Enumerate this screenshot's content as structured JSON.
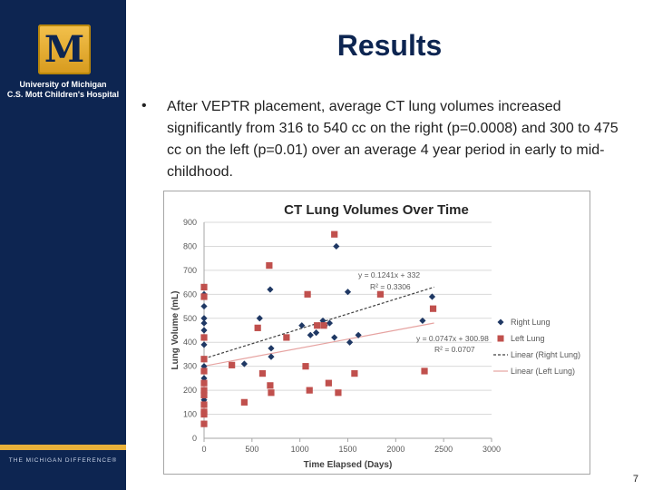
{
  "sidebar": {
    "logo_letter": "M",
    "institution_line1": "University of Michigan",
    "institution_line2": "C.S. Mott Children's Hospital",
    "footer": "THE MICHIGAN DIFFERENCE®"
  },
  "slide": {
    "title": "Results",
    "bullet_symbol": "•",
    "bullet_text": "After VEPTR placement, average CT lung volumes increased significantly from 316 to 540 cc on the right (p=0.0008) and 300 to 475 cc on the left (p=0.01) over an average 4 year period in early to mid-childhood.",
    "page_number": "7"
  },
  "colors": {
    "sidebar_bg": "#0d2551",
    "accent_gold": "#e8b13a",
    "right_lung": "#1f3864",
    "left_lung": "#c0504d"
  },
  "chart_data": {
    "type": "scatter",
    "title": "CT Lung Volumes Over Time",
    "xlabel": "Time Elapsed (Days)",
    "ylabel": "Lung Volume (mL)",
    "xlim": [
      0,
      3000
    ],
    "ylim": [
      0,
      900
    ],
    "x_ticks": [
      0,
      500,
      1000,
      1500,
      2000,
      2500,
      3000
    ],
    "y_ticks": [
      0,
      100,
      200,
      300,
      400,
      500,
      600,
      700,
      800,
      900
    ],
    "grid": "horizontal",
    "legend_position": "right",
    "series": [
      {
        "name": "Right Lung",
        "marker": "diamond",
        "color": "#1f3864",
        "points": [
          [
            0,
            600
          ],
          [
            0,
            550
          ],
          [
            0,
            500
          ],
          [
            0,
            480
          ],
          [
            0,
            450
          ],
          [
            0,
            420
          ],
          [
            0,
            390
          ],
          [
            0,
            300
          ],
          [
            0,
            250
          ],
          [
            0,
            200
          ],
          [
            0,
            160
          ],
          [
            0,
            140
          ],
          [
            420,
            310
          ],
          [
            580,
            500
          ],
          [
            690,
            620
          ],
          [
            700,
            375
          ],
          [
            700,
            340
          ],
          [
            1020,
            470
          ],
          [
            1110,
            430
          ],
          [
            1170,
            440
          ],
          [
            1240,
            490
          ],
          [
            1260,
            470
          ],
          [
            1310,
            480
          ],
          [
            1360,
            420
          ],
          [
            1380,
            800
          ],
          [
            1500,
            610
          ],
          [
            1520,
            400
          ],
          [
            1610,
            430
          ],
          [
            2280,
            490
          ],
          [
            2380,
            590
          ]
        ]
      },
      {
        "name": "Left Lung",
        "marker": "square",
        "color": "#c0504d",
        "points": [
          [
            0,
            630
          ],
          [
            0,
            590
          ],
          [
            0,
            420
          ],
          [
            0,
            330
          ],
          [
            0,
            280
          ],
          [
            0,
            230
          ],
          [
            0,
            200
          ],
          [
            0,
            180
          ],
          [
            0,
            140
          ],
          [
            0,
            110
          ],
          [
            0,
            100
          ],
          [
            0,
            60
          ],
          [
            290,
            305
          ],
          [
            420,
            150
          ],
          [
            560,
            460
          ],
          [
            610,
            270
          ],
          [
            680,
            720
          ],
          [
            690,
            220
          ],
          [
            700,
            190
          ],
          [
            860,
            420
          ],
          [
            1060,
            300
          ],
          [
            1080,
            600
          ],
          [
            1100,
            200
          ],
          [
            1180,
            470
          ],
          [
            1250,
            470
          ],
          [
            1300,
            230
          ],
          [
            1360,
            850
          ],
          [
            1400,
            190
          ],
          [
            1570,
            270
          ],
          [
            1840,
            600
          ],
          [
            2300,
            280
          ],
          [
            2390,
            540
          ]
        ]
      }
    ],
    "trendlines": [
      {
        "name": "Linear (Right Lung)",
        "slope": 0.1241,
        "intercept": 332,
        "equation": "y = 0.1241x + 332",
        "r2": "R² = 0.3306",
        "style": "dotted",
        "color": "#404040"
      },
      {
        "name": "Linear (Left Lung)",
        "slope": 0.0747,
        "intercept": 300.98,
        "equation": "y = 0.0747x + 300.98",
        "r2": "R² = 0.0707",
        "style": "solid",
        "color": "#e6a3a1"
      }
    ]
  }
}
